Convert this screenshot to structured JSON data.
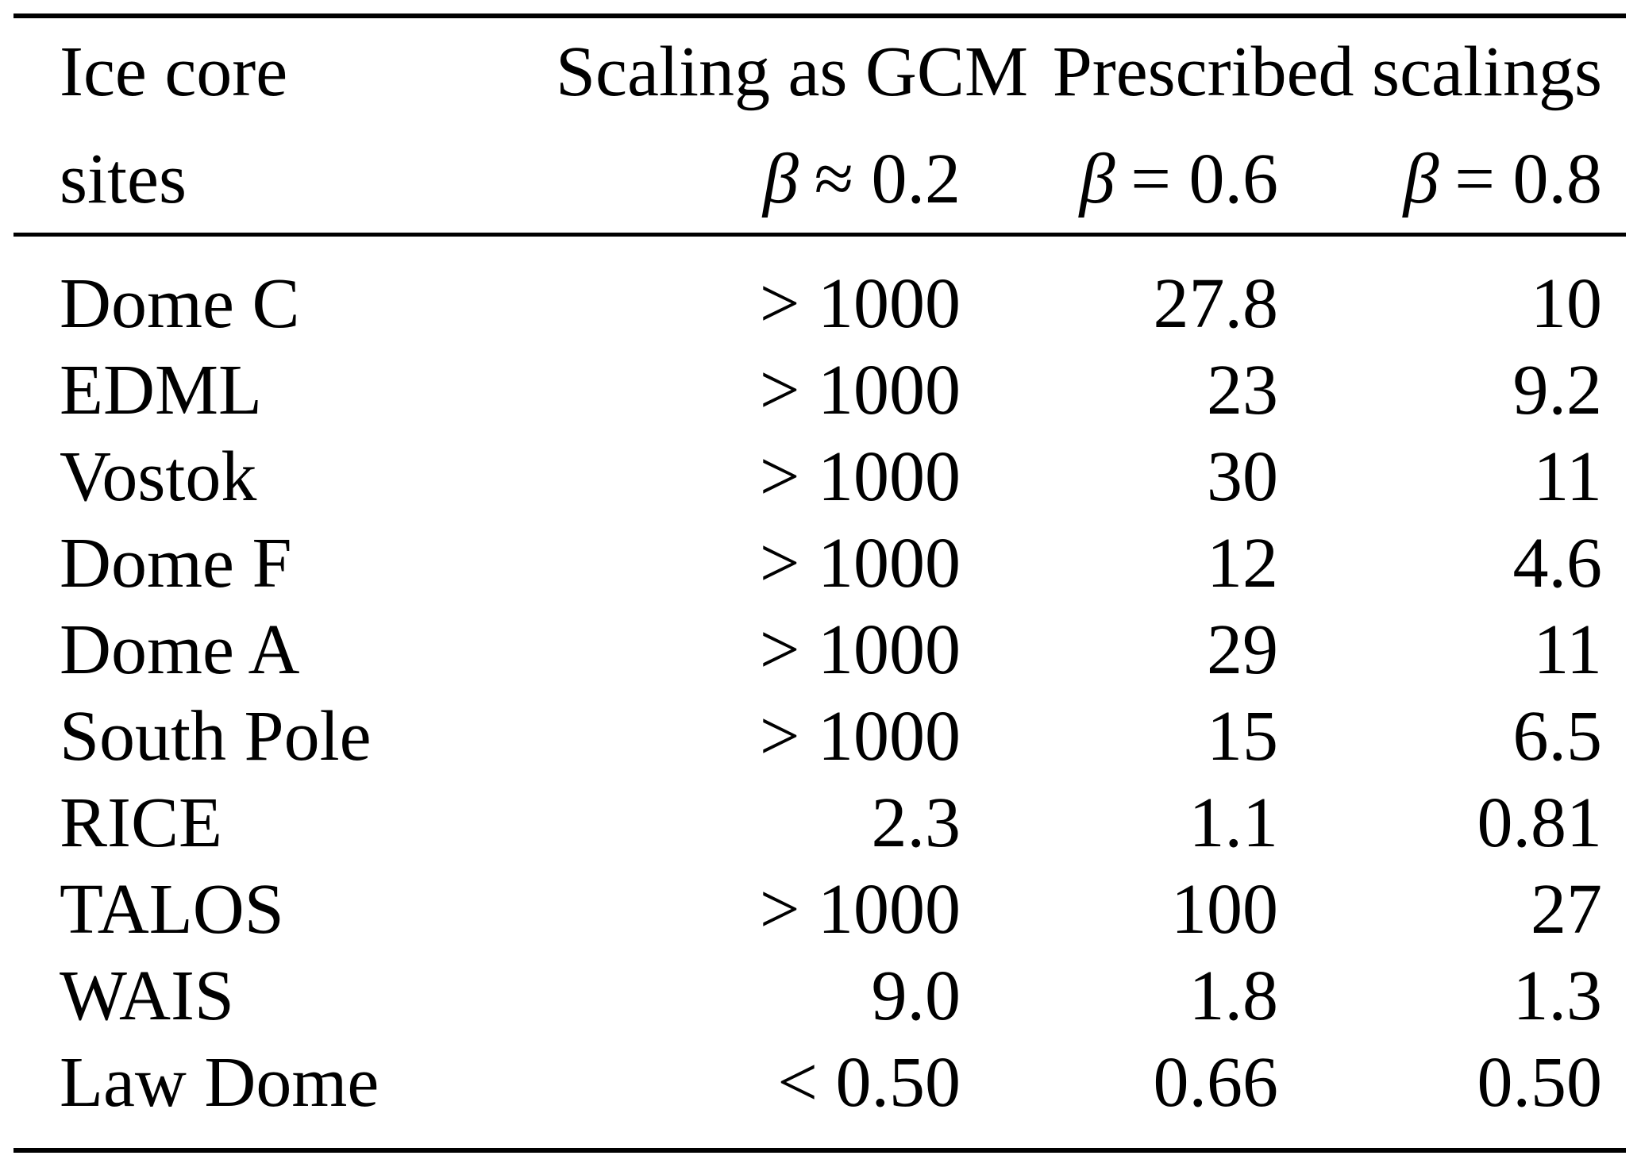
{
  "table": {
    "header": {
      "col1_line1": "Ice core",
      "col1_line2": "sites",
      "col2_line1": "Scaling as GCM",
      "col2_beta": "β",
      "col2_rel": "≈ 0.2",
      "group_label": "Prescribed scalings",
      "col3_beta": "β",
      "col3_rel": "= 0.6",
      "col4_beta": "β",
      "col4_rel": "= 0.8"
    },
    "rows": [
      {
        "site": "Dome C",
        "gcm": "> 1000",
        "b06": "27.8",
        "b08": "10"
      },
      {
        "site": "EDML",
        "gcm": "> 1000",
        "b06": "23",
        "b08": "9.2"
      },
      {
        "site": "Vostok",
        "gcm": "> 1000",
        "b06": "30",
        "b08": "11"
      },
      {
        "site": "Dome F",
        "gcm": "> 1000",
        "b06": "12",
        "b08": "4.6"
      },
      {
        "site": "Dome A",
        "gcm": "> 1000",
        "b06": "29",
        "b08": "11"
      },
      {
        "site": "South Pole",
        "gcm": "> 1000",
        "b06": "15",
        "b08": "6.5"
      },
      {
        "site": "RICE",
        "gcm": "2.3",
        "b06": "1.1",
        "b08": "0.81"
      },
      {
        "site": "TALOS",
        "gcm": "> 1000",
        "b06": "100",
        "b08": "27"
      },
      {
        "site": "WAIS",
        "gcm": "9.0",
        "b06": "1.8",
        "b08": "1.3"
      },
      {
        "site": "Law Dome",
        "gcm": "< 0.50",
        "b06": "0.66",
        "b08": "0.50"
      }
    ]
  }
}
